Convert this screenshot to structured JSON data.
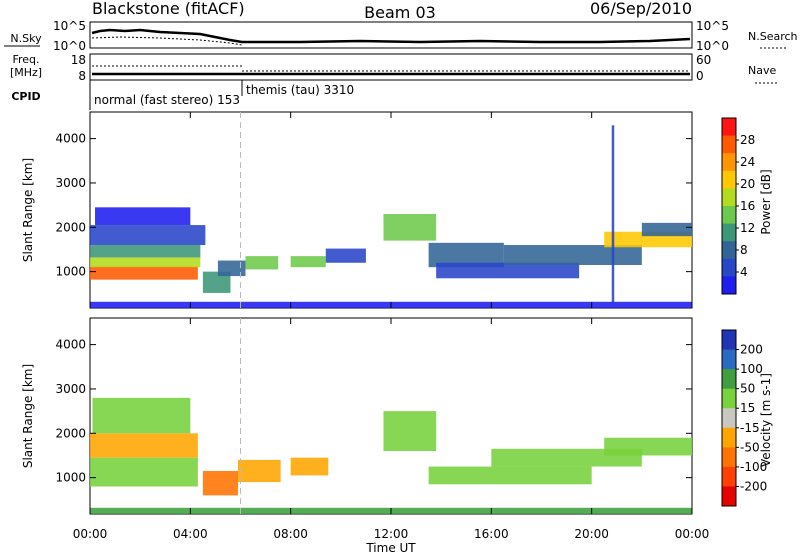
{
  "chart_data": {
    "type": "heatmap",
    "header": {
      "title_left": "Blackstone (fitACF)",
      "title_center": "Beam 03",
      "title_right": "06/Sep/2010"
    },
    "aux_panels": {
      "nsky_label": "N.Sky",
      "nsky_ticks": [
        "10^5",
        "10^0"
      ],
      "nsearch_label": "N.Search",
      "nsearch_ticks": [
        "10^5",
        "10^0"
      ],
      "freq_label_top": "Freq.",
      "freq_label_unit": "[MHz]",
      "freq_ticks": [
        "18",
        "8"
      ],
      "nave_label": "Nave",
      "nave_ticks": [
        "60",
        "0"
      ],
      "cpid_label": "CPID",
      "cpid_segments": [
        {
          "label": "normal (fast stereo) 153",
          "start_hour": 0,
          "end_hour": 6
        },
        {
          "label": "themis (tau) 3310",
          "start_hour": 6,
          "end_hour": 24
        }
      ]
    },
    "x_axis": {
      "label": "Time UT",
      "range_hours": [
        0,
        24
      ],
      "tick_labels": [
        "00:00",
        "04:00",
        "08:00",
        "12:00",
        "16:00",
        "20:00",
        "00:00"
      ]
    },
    "y_axis": {
      "label": "Slant Range [km]",
      "range_km": [
        180,
        4600
      ],
      "tick_values": [
        1000,
        2000,
        3000,
        4000
      ]
    },
    "panels": [
      {
        "name": "power",
        "colorbar_label": "Power [dB]",
        "colorbar_ticks": [
          "28",
          "24",
          "20",
          "16",
          "12",
          "8",
          "4"
        ],
        "colorbar_colors": [
          "#ff1414",
          "#ff5a00",
          "#ff9600",
          "#ffc800",
          "#b4dc1e",
          "#6ec84b",
          "#3c9678",
          "#326496",
          "#2846c8",
          "#1e1ef0"
        ],
        "patches": [
          {
            "t0": 0.0,
            "t1": 4.3,
            "r0": 820,
            "r1": 1120,
            "v": 27
          },
          {
            "t0": 0.0,
            "t1": 4.4,
            "r0": 1100,
            "r1": 1320,
            "v": 18
          },
          {
            "t0": 0.0,
            "t1": 4.4,
            "r0": 1320,
            "r1": 1600,
            "v": 12
          },
          {
            "t0": 0.0,
            "t1": 4.6,
            "r0": 1600,
            "r1": 2050,
            "v": 5
          },
          {
            "t0": 0.2,
            "t1": 4.0,
            "r0": 2050,
            "r1": 2450,
            "v": 4
          },
          {
            "t0": 4.5,
            "t1": 5.6,
            "r0": 520,
            "r1": 1000,
            "v": 12
          },
          {
            "t0": 5.1,
            "t1": 6.2,
            "r0": 900,
            "r1": 1250,
            "v": 9
          },
          {
            "t0": 6.2,
            "t1": 7.5,
            "r0": 1050,
            "r1": 1350,
            "v": 16
          },
          {
            "t0": 8.0,
            "t1": 9.4,
            "r0": 1100,
            "r1": 1350,
            "v": 15
          },
          {
            "t0": 9.4,
            "t1": 11.0,
            "r0": 1200,
            "r1": 1520,
            "v": 6
          },
          {
            "t0": 11.7,
            "t1": 13.8,
            "r0": 1700,
            "r1": 2300,
            "v": 16
          },
          {
            "t0": 13.5,
            "t1": 16.5,
            "r0": 1100,
            "r1": 1650,
            "v": 9
          },
          {
            "t0": 13.8,
            "t1": 19.5,
            "r0": 850,
            "r1": 1200,
            "v": 7
          },
          {
            "t0": 16.5,
            "t1": 22.0,
            "r0": 1150,
            "r1": 1600,
            "v": 10
          },
          {
            "t0": 20.5,
            "t1": 24.0,
            "r0": 1550,
            "r1": 1900,
            "v": 22
          },
          {
            "t0": 22.0,
            "t1": 24.0,
            "r0": 1800,
            "r1": 2100,
            "v": 8
          },
          {
            "t0": 20.8,
            "t1": 20.9,
            "r0": 300,
            "r1": 4300,
            "v": 6
          },
          {
            "t0": 0.0,
            "t1": 24.0,
            "r0": 180,
            "r1": 320,
            "v": 4
          }
        ]
      },
      {
        "name": "velocity",
        "colorbar_label": "Velocity [m s-1]",
        "colorbar_ticks": [
          "200",
          "100",
          "50",
          "15",
          "-15",
          "-50",
          "-100",
          "-200"
        ],
        "colorbar_colors": [
          "#2034b4",
          "#2a6ac0",
          "#3f9f3f",
          "#78d23c",
          "#c8c8c0",
          "#ffa500",
          "#ff7300",
          "#ff4000",
          "#e60000"
        ],
        "patches": [
          {
            "t0": 0.0,
            "t1": 4.3,
            "r0": 800,
            "r1": 1450,
            "v": 0
          },
          {
            "t0": 0.0,
            "t1": 4.3,
            "r0": 1450,
            "r1": 2000,
            "v": -40
          },
          {
            "t0": 0.1,
            "t1": 4.0,
            "r0": 2000,
            "r1": 2800,
            "v": 20
          },
          {
            "t0": 4.5,
            "t1": 5.9,
            "r0": 600,
            "r1": 1150,
            "v": -150
          },
          {
            "t0": 5.9,
            "t1": 7.6,
            "r0": 900,
            "r1": 1400,
            "v": -60
          },
          {
            "t0": 8.0,
            "t1": 9.5,
            "r0": 1050,
            "r1": 1450,
            "v": -50
          },
          {
            "t0": 11.7,
            "t1": 13.8,
            "r0": 1600,
            "r1": 2500,
            "v": 0
          },
          {
            "t0": 13.5,
            "t1": 20.0,
            "r0": 850,
            "r1": 1250,
            "v": 0
          },
          {
            "t0": 16.0,
            "t1": 22.0,
            "r0": 1250,
            "r1": 1650,
            "v": 0
          },
          {
            "t0": 20.5,
            "t1": 24.0,
            "r0": 1500,
            "r1": 1900,
            "v": 0
          },
          {
            "t0": 0.0,
            "t1": 24.0,
            "r0": 180,
            "r1": 320,
            "v": 60
          }
        ]
      }
    ]
  }
}
